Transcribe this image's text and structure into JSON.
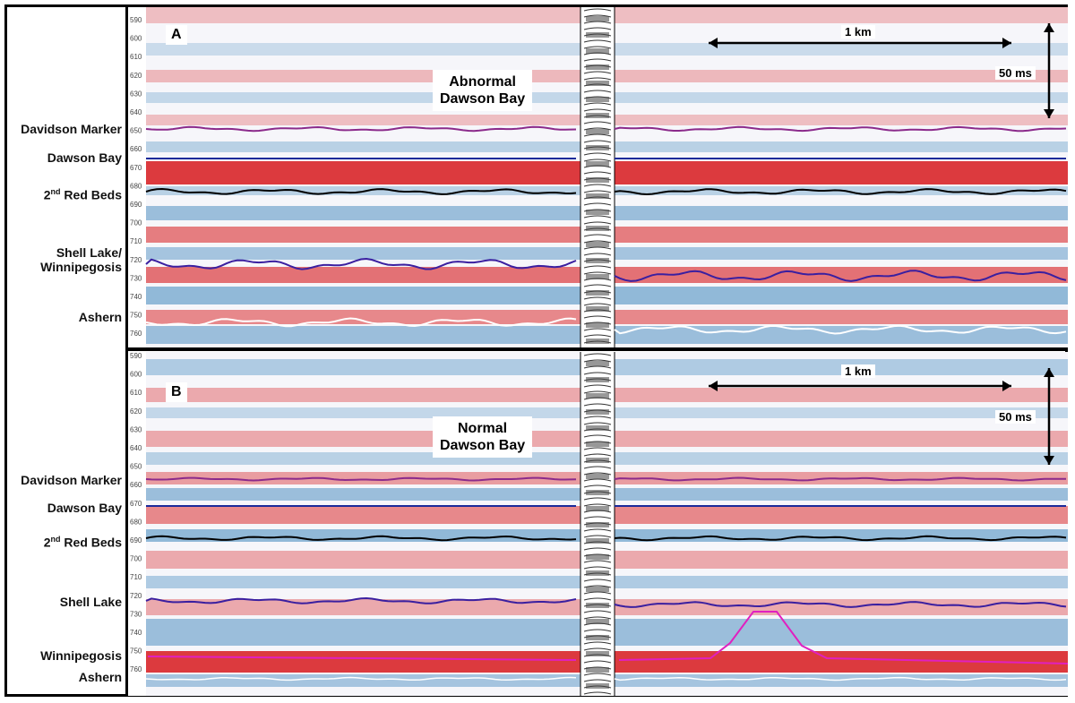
{
  "labels_a": [
    {
      "text": "Davidson Marker",
      "lines": [
        "Davidson Marker"
      ]
    },
    {
      "text": "Dawson Bay",
      "lines": [
        "Dawson Bay"
      ]
    },
    {
      "text": "2nd Red Beds",
      "lines": [
        "2",
        "nd",
        " Red Beds"
      ]
    },
    {
      "text": "Shell Lake/ Winnipegosis",
      "lines": [
        "Shell Lake/",
        "Winnipegosis"
      ]
    },
    {
      "text": "Ashern",
      "lines": [
        "Ashern"
      ]
    }
  ],
  "labels_b": [
    {
      "text": "Davidson Marker",
      "lines": [
        "Davidson Marker"
      ]
    },
    {
      "text": "Dawson Bay",
      "lines": [
        "Dawson Bay"
      ]
    },
    {
      "text": "2nd Red Beds",
      "lines": [
        "2",
        "nd",
        " Red Beds"
      ]
    },
    {
      "text": "Shell Lake",
      "lines": [
        "Shell Lake"
      ]
    },
    {
      "text": "Winnipegosis",
      "lines": [
        "Winnipegosis"
      ]
    },
    {
      "text": "Ashern",
      "lines": [
        "Ashern"
      ]
    }
  ],
  "panel_a": {
    "letter": "A",
    "title_line1": "Abnormal",
    "title_line2": "Dawson Bay",
    "scale_h": "1 km",
    "scale_v": "50 ms",
    "ticks": [
      "590",
      "600",
      "610",
      "620",
      "630",
      "640",
      "650",
      "660",
      "670",
      "680",
      "690",
      "700",
      "710",
      "720",
      "730",
      "740",
      "750",
      "760"
    ]
  },
  "panel_b": {
    "letter": "B",
    "title_line1": "Normal",
    "title_line2": "Dawson Bay",
    "scale_h": "1 km",
    "scale_v": "50 ms",
    "ticks": [
      "590",
      "600",
      "610",
      "620",
      "630",
      "640",
      "650",
      "660",
      "670",
      "680",
      "690",
      "700",
      "710",
      "720",
      "730",
      "740",
      "750",
      "760"
    ]
  },
  "colors": {
    "red": "#d7191c",
    "blue": "#2c7bb6",
    "davidson": "#8b2a8b",
    "dawson": "#1a2a9a",
    "redbeds": "#000000",
    "shell": "#3a1fa0",
    "winnipegosis": "#e020c0",
    "ashern": "#ffffff"
  }
}
